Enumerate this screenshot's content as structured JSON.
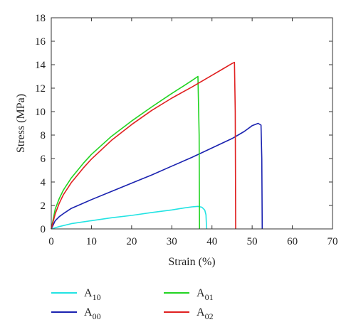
{
  "chart_data": {
    "type": "line",
    "xlabel": "Strain (%)",
    "ylabel": "Stress (MPa)",
    "xlim": [
      0,
      70
    ],
    "ylim": [
      0,
      18
    ],
    "xticks": [
      0,
      10,
      20,
      30,
      40,
      50,
      60,
      70
    ],
    "yticks": [
      0,
      2,
      4,
      6,
      8,
      10,
      12,
      14,
      16,
      18
    ],
    "grid": false,
    "legend_position": "bottom",
    "series": [
      {
        "name": "A10",
        "label_base": "A",
        "label_sub": "10",
        "color": "#22e3e3",
        "points": [
          [
            0,
            0
          ],
          [
            2,
            0.2
          ],
          [
            5,
            0.45
          ],
          [
            10,
            0.7
          ],
          [
            15,
            0.95
          ],
          [
            20,
            1.15
          ],
          [
            25,
            1.4
          ],
          [
            30,
            1.62
          ],
          [
            33,
            1.78
          ],
          [
            35,
            1.88
          ],
          [
            36.5,
            1.92
          ],
          [
            37.5,
            1.85
          ],
          [
            38.2,
            1.6
          ],
          [
            38.5,
            1.2
          ],
          [
            38.6,
            0.5
          ],
          [
            38.7,
            0
          ]
        ]
      },
      {
        "name": "A00",
        "label_base": "A",
        "label_sub": "00",
        "color": "#1a22b0",
        "points": [
          [
            0,
            0
          ],
          [
            1,
            0.7
          ],
          [
            2,
            1.05
          ],
          [
            3,
            1.3
          ],
          [
            5,
            1.75
          ],
          [
            10,
            2.5
          ],
          [
            15,
            3.2
          ],
          [
            20,
            3.9
          ],
          [
            25,
            4.6
          ],
          [
            30,
            5.35
          ],
          [
            35,
            6.1
          ],
          [
            40,
            6.9
          ],
          [
            45,
            7.7
          ],
          [
            48,
            8.3
          ],
          [
            50,
            8.8
          ],
          [
            51.5,
            9.0
          ],
          [
            52.2,
            8.85
          ],
          [
            52.4,
            6
          ],
          [
            52.5,
            0
          ]
        ]
      },
      {
        "name": "A01",
        "label_base": "A",
        "label_sub": "01",
        "color": "#22d422",
        "points": [
          [
            0,
            0
          ],
          [
            1,
            1.7
          ],
          [
            2,
            2.6
          ],
          [
            3,
            3.3
          ],
          [
            5,
            4.35
          ],
          [
            8,
            5.6
          ],
          [
            10,
            6.35
          ],
          [
            15,
            7.9
          ],
          [
            20,
            9.2
          ],
          [
            25,
            10.4
          ],
          [
            30,
            11.55
          ],
          [
            33,
            12.2
          ],
          [
            35,
            12.65
          ],
          [
            36.5,
            13.0
          ],
          [
            36.8,
            8
          ],
          [
            36.9,
            0
          ]
        ]
      },
      {
        "name": "A02",
        "label_base": "A",
        "label_sub": "02",
        "color": "#e02020",
        "points": [
          [
            0,
            0
          ],
          [
            1,
            1.3
          ],
          [
            2,
            2.2
          ],
          [
            3,
            2.9
          ],
          [
            5,
            3.95
          ],
          [
            8,
            5.2
          ],
          [
            10,
            5.95
          ],
          [
            15,
            7.55
          ],
          [
            20,
            8.9
          ],
          [
            25,
            10.1
          ],
          [
            30,
            11.15
          ],
          [
            35,
            12.1
          ],
          [
            40,
            13.1
          ],
          [
            43,
            13.7
          ],
          [
            45,
            14.1
          ],
          [
            45.6,
            14.2
          ],
          [
            45.8,
            10
          ],
          [
            45.9,
            0
          ]
        ]
      }
    ]
  }
}
